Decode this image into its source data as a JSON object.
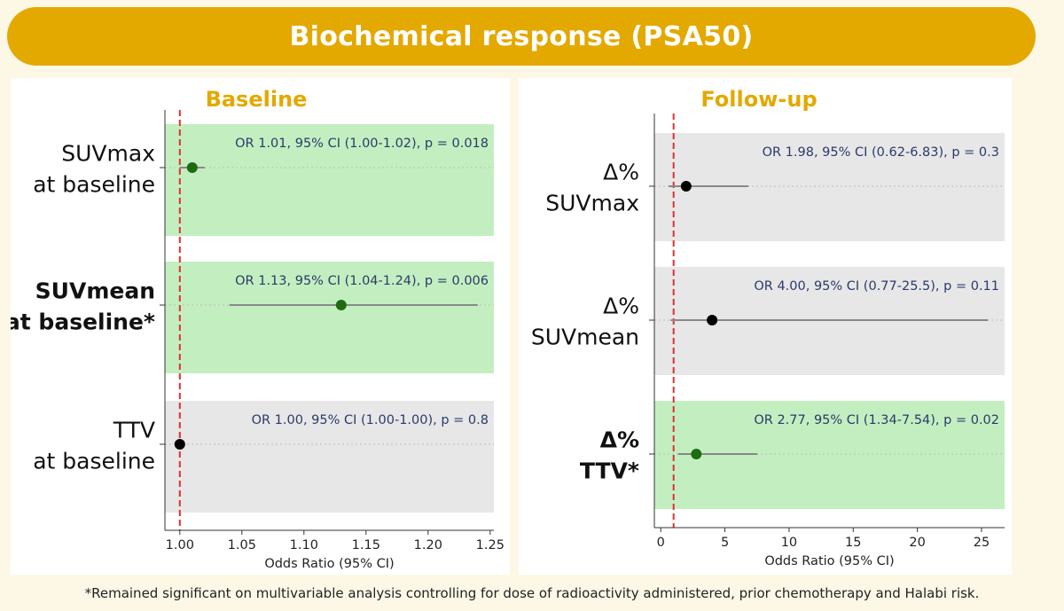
{
  "header": {
    "title": "Biochemical response (PSA50)"
  },
  "footnote": "*Remained significant on multivariable analysis controlling for dose of radioactivity administered, prior chemotherapy and Halabi risk.",
  "colors": {
    "title_accent": "#e3a900",
    "significant_band": "#c3efc0",
    "nonsignificant_band": "#e7e7e7",
    "significant_point": "#1e6b12",
    "nonsignificant_point": "#000000",
    "reference_line": "#e03030",
    "annotation_text": "#2b3a6b"
  },
  "chart_data": [
    {
      "type": "forest",
      "title": "Baseline",
      "xlabel": "Odds Ratio (95% CI)",
      "xlim": [
        0.988,
        1.253
      ],
      "xticks": [
        "1.00",
        "1.05",
        "1.10",
        "1.15",
        "1.20",
        "1.25"
      ],
      "reference_line": 1.0,
      "rows": [
        {
          "label_lines": [
            "SUVmax",
            "at baseline"
          ],
          "bold": false,
          "or": 1.01,
          "ci": [
            1.0,
            1.02
          ],
          "annotation": "OR 1.01, 95% CI (1.00-1.02), p = 0.018",
          "significant": true
        },
        {
          "label_lines": [
            "SUVmean",
            "at baseline*"
          ],
          "bold": true,
          "or": 1.13,
          "ci": [
            1.04,
            1.24
          ],
          "annotation": "OR 1.13, 95% CI (1.04-1.24), p = 0.006",
          "significant": true
        },
        {
          "label_lines": [
            "TTV",
            "at baseline"
          ],
          "bold": false,
          "or": 1.0,
          "ci": [
            1.0,
            1.0
          ],
          "annotation": "OR 1.00, 95% CI (1.00-1.00), p = 0.8",
          "significant": false
        }
      ]
    },
    {
      "type": "forest",
      "title": "Follow-up",
      "xlabel": "Odds Ratio (95% CI)",
      "xlim": [
        -0.5,
        26.8
      ],
      "xticks": [
        "0",
        "5",
        "10",
        "15",
        "20",
        "25"
      ],
      "reference_line": 1.0,
      "rows": [
        {
          "label_lines": [
            "Δ%",
            "SUVmax"
          ],
          "bold": false,
          "or": 1.98,
          "ci": [
            0.62,
            6.83
          ],
          "annotation": "OR 1.98, 95% CI (0.62-6.83), p = 0.3",
          "significant": false
        },
        {
          "label_lines": [
            "Δ%",
            "SUVmean"
          ],
          "bold": false,
          "or": 4.0,
          "ci": [
            0.77,
            25.5
          ],
          "annotation": "OR 4.00, 95% CI (0.77-25.5), p = 0.11",
          "significant": false
        },
        {
          "label_lines": [
            "Δ%",
            "TTV*"
          ],
          "bold": true,
          "or": 2.77,
          "ci": [
            1.34,
            7.54
          ],
          "annotation": "OR 2.77, 95% CI (1.34-7.54), p = 0.02",
          "significant": true
        }
      ]
    }
  ]
}
